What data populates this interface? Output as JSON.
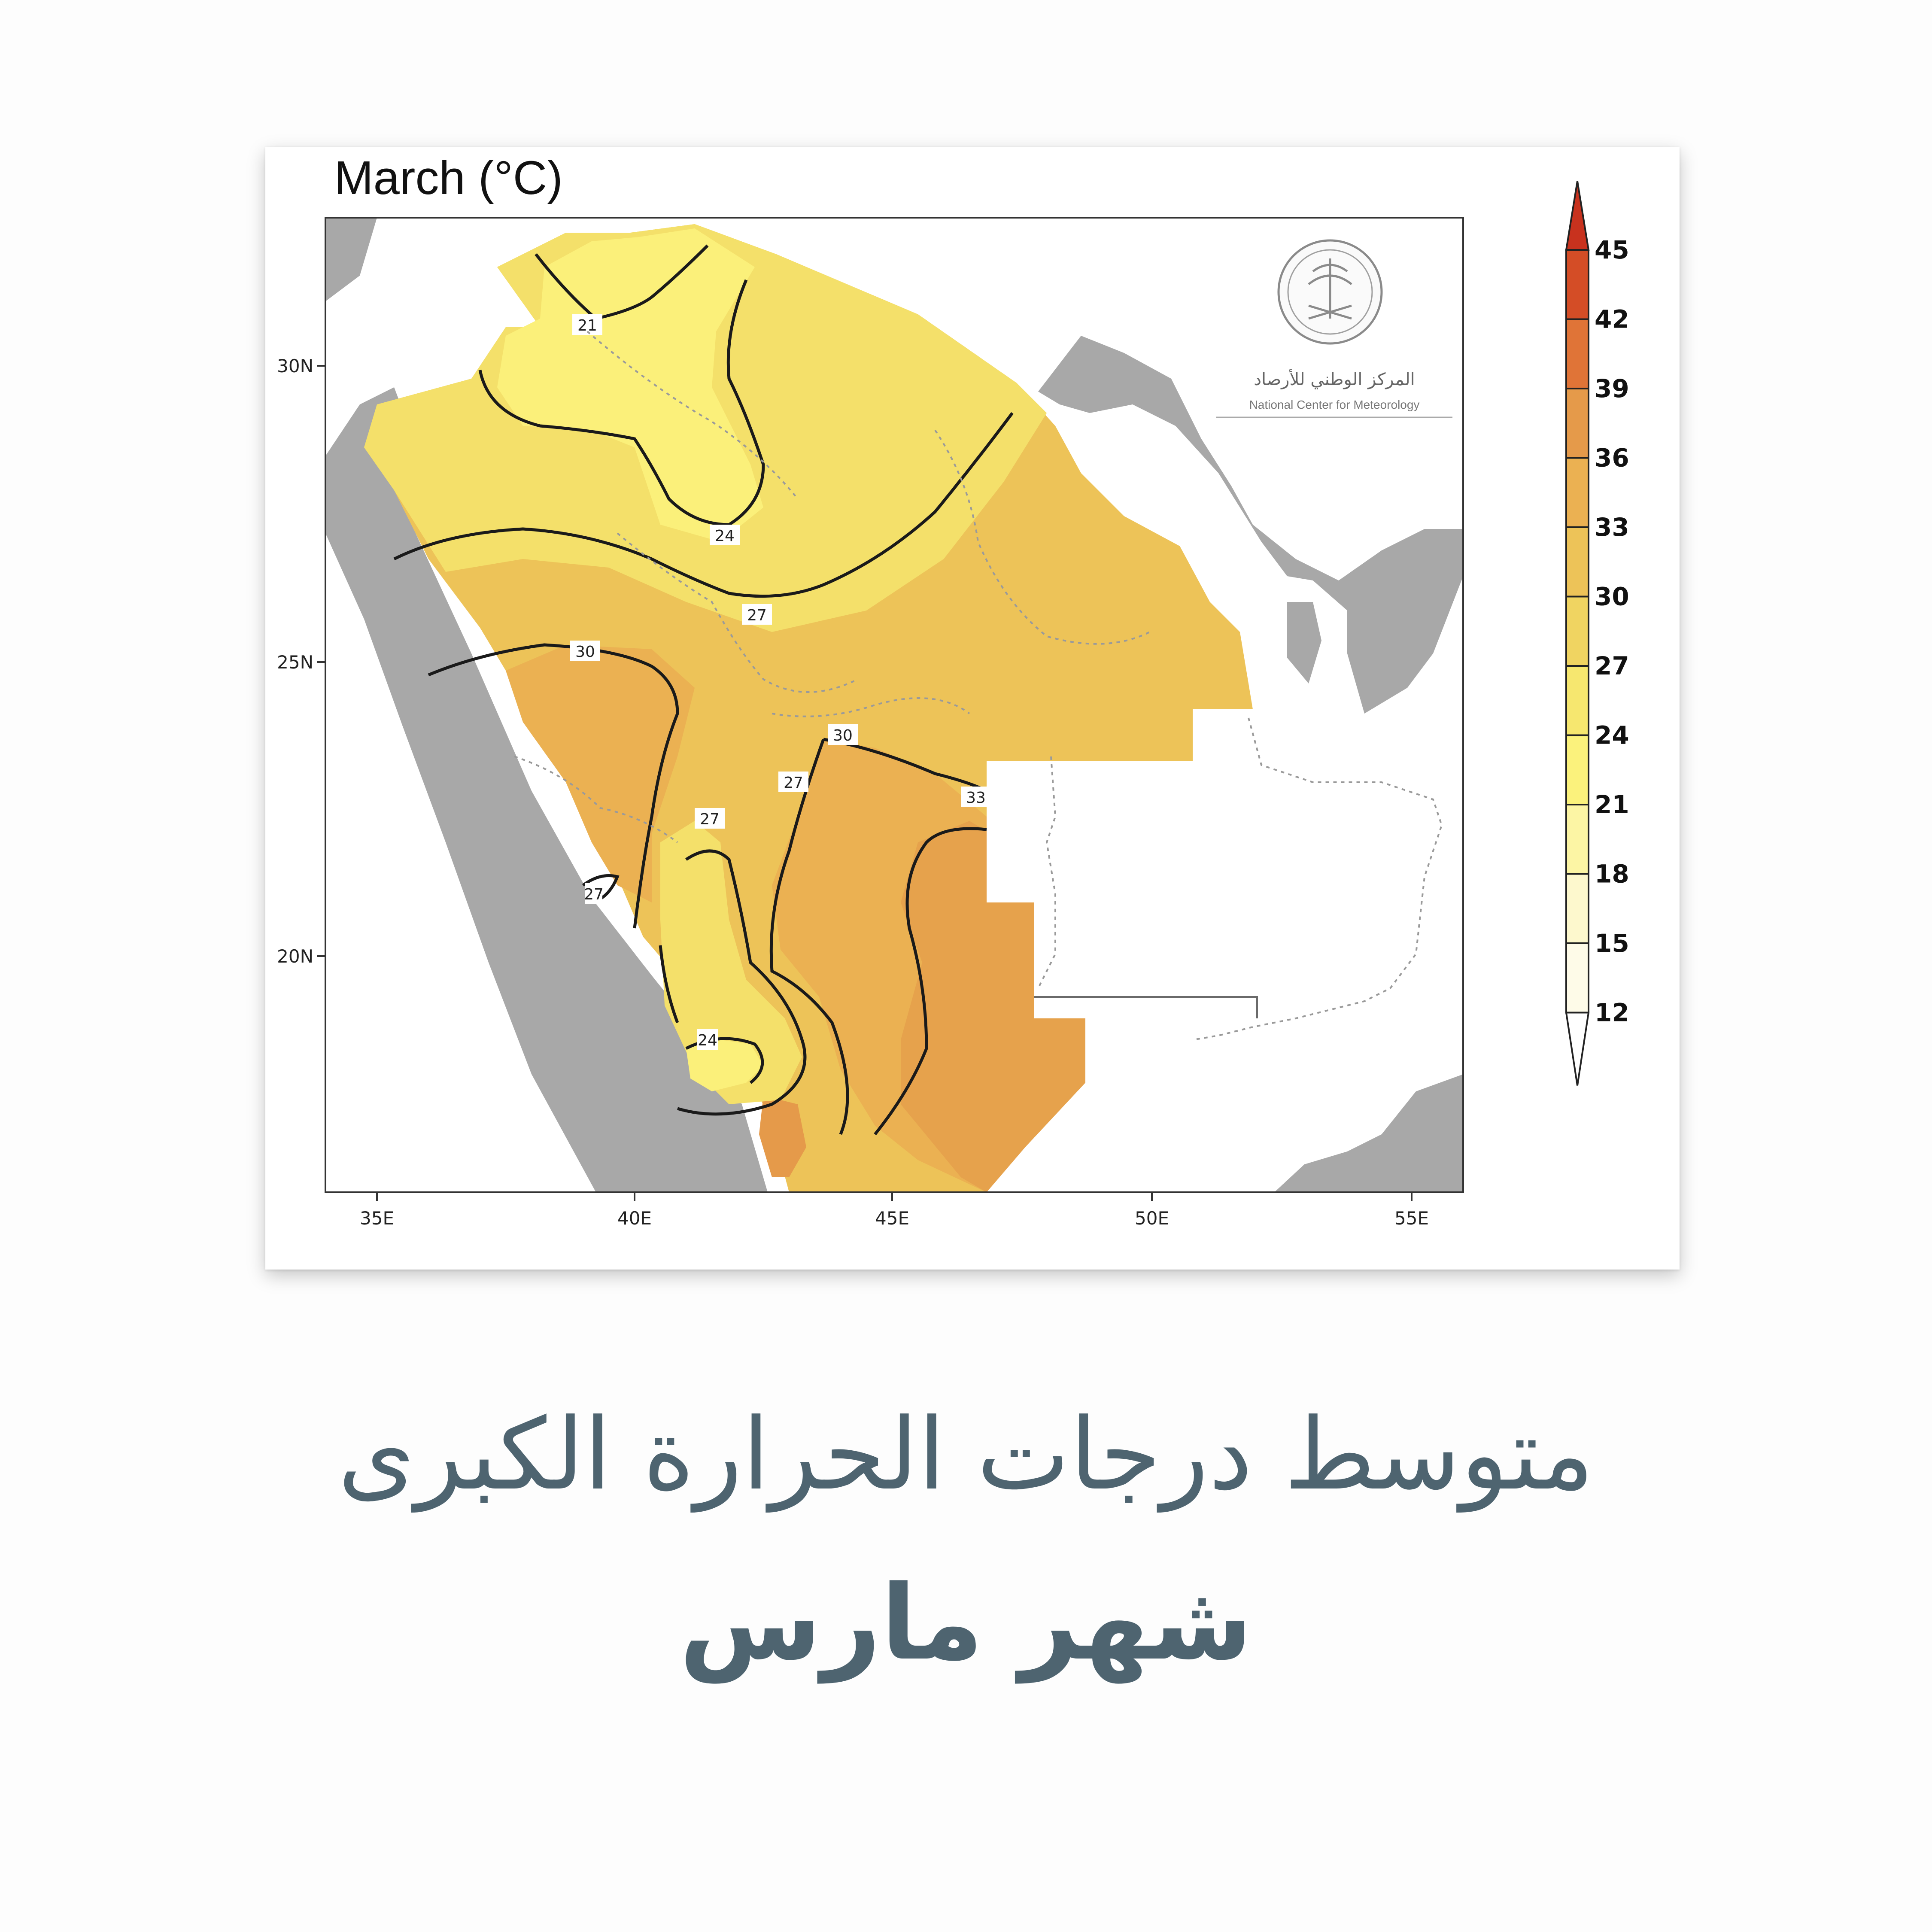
{
  "map": {
    "title": "March (°C)",
    "lon_ticks": [
      "35E",
      "40E",
      "45E",
      "50E",
      "55E"
    ],
    "lat_ticks": [
      "30N",
      "25N",
      "20N"
    ],
    "contour_labels": [
      "21",
      "24",
      "27",
      "30",
      "27",
      "30",
      "27",
      "27",
      "33",
      "24"
    ],
    "colorbar": {
      "levels": [
        "45",
        "42",
        "39",
        "36",
        "33",
        "30",
        "27",
        "24",
        "21",
        "18",
        "15",
        "12"
      ],
      "colors": [
        "#c8321e",
        "#d44d26",
        "#e07437",
        "#e59a4a",
        "#ebb152",
        "#edc358",
        "#f0d461",
        "#f6e76f",
        "#fbf27c",
        "#fcf5a4",
        "#fdf8cd",
        "#fefbe8",
        "#ffffff"
      ]
    },
    "logo": {
      "arabic_name": "المركز الوطني للأرصاد",
      "english_name": "National Center for Meteorology"
    }
  },
  "caption": {
    "line1": "متوسط درجات الحرارة الكبرى",
    "line2": "شهر مارس"
  }
}
